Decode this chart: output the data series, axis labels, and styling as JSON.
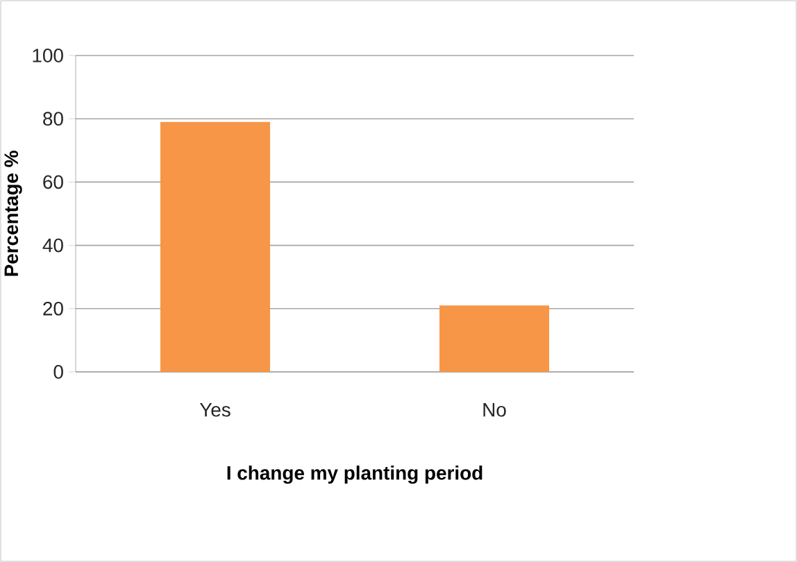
{
  "chart_data": {
    "type": "bar",
    "xlabel": "I change my planting period",
    "ylabel": "Percentage %",
    "categories": [
      "Yes",
      "No"
    ],
    "values": [
      79,
      21
    ],
    "color": "#f79646",
    "ylim": [
      0,
      100
    ],
    "yticks": [
      0,
      20,
      40,
      60,
      80,
      100
    ],
    "grid": "y"
  }
}
